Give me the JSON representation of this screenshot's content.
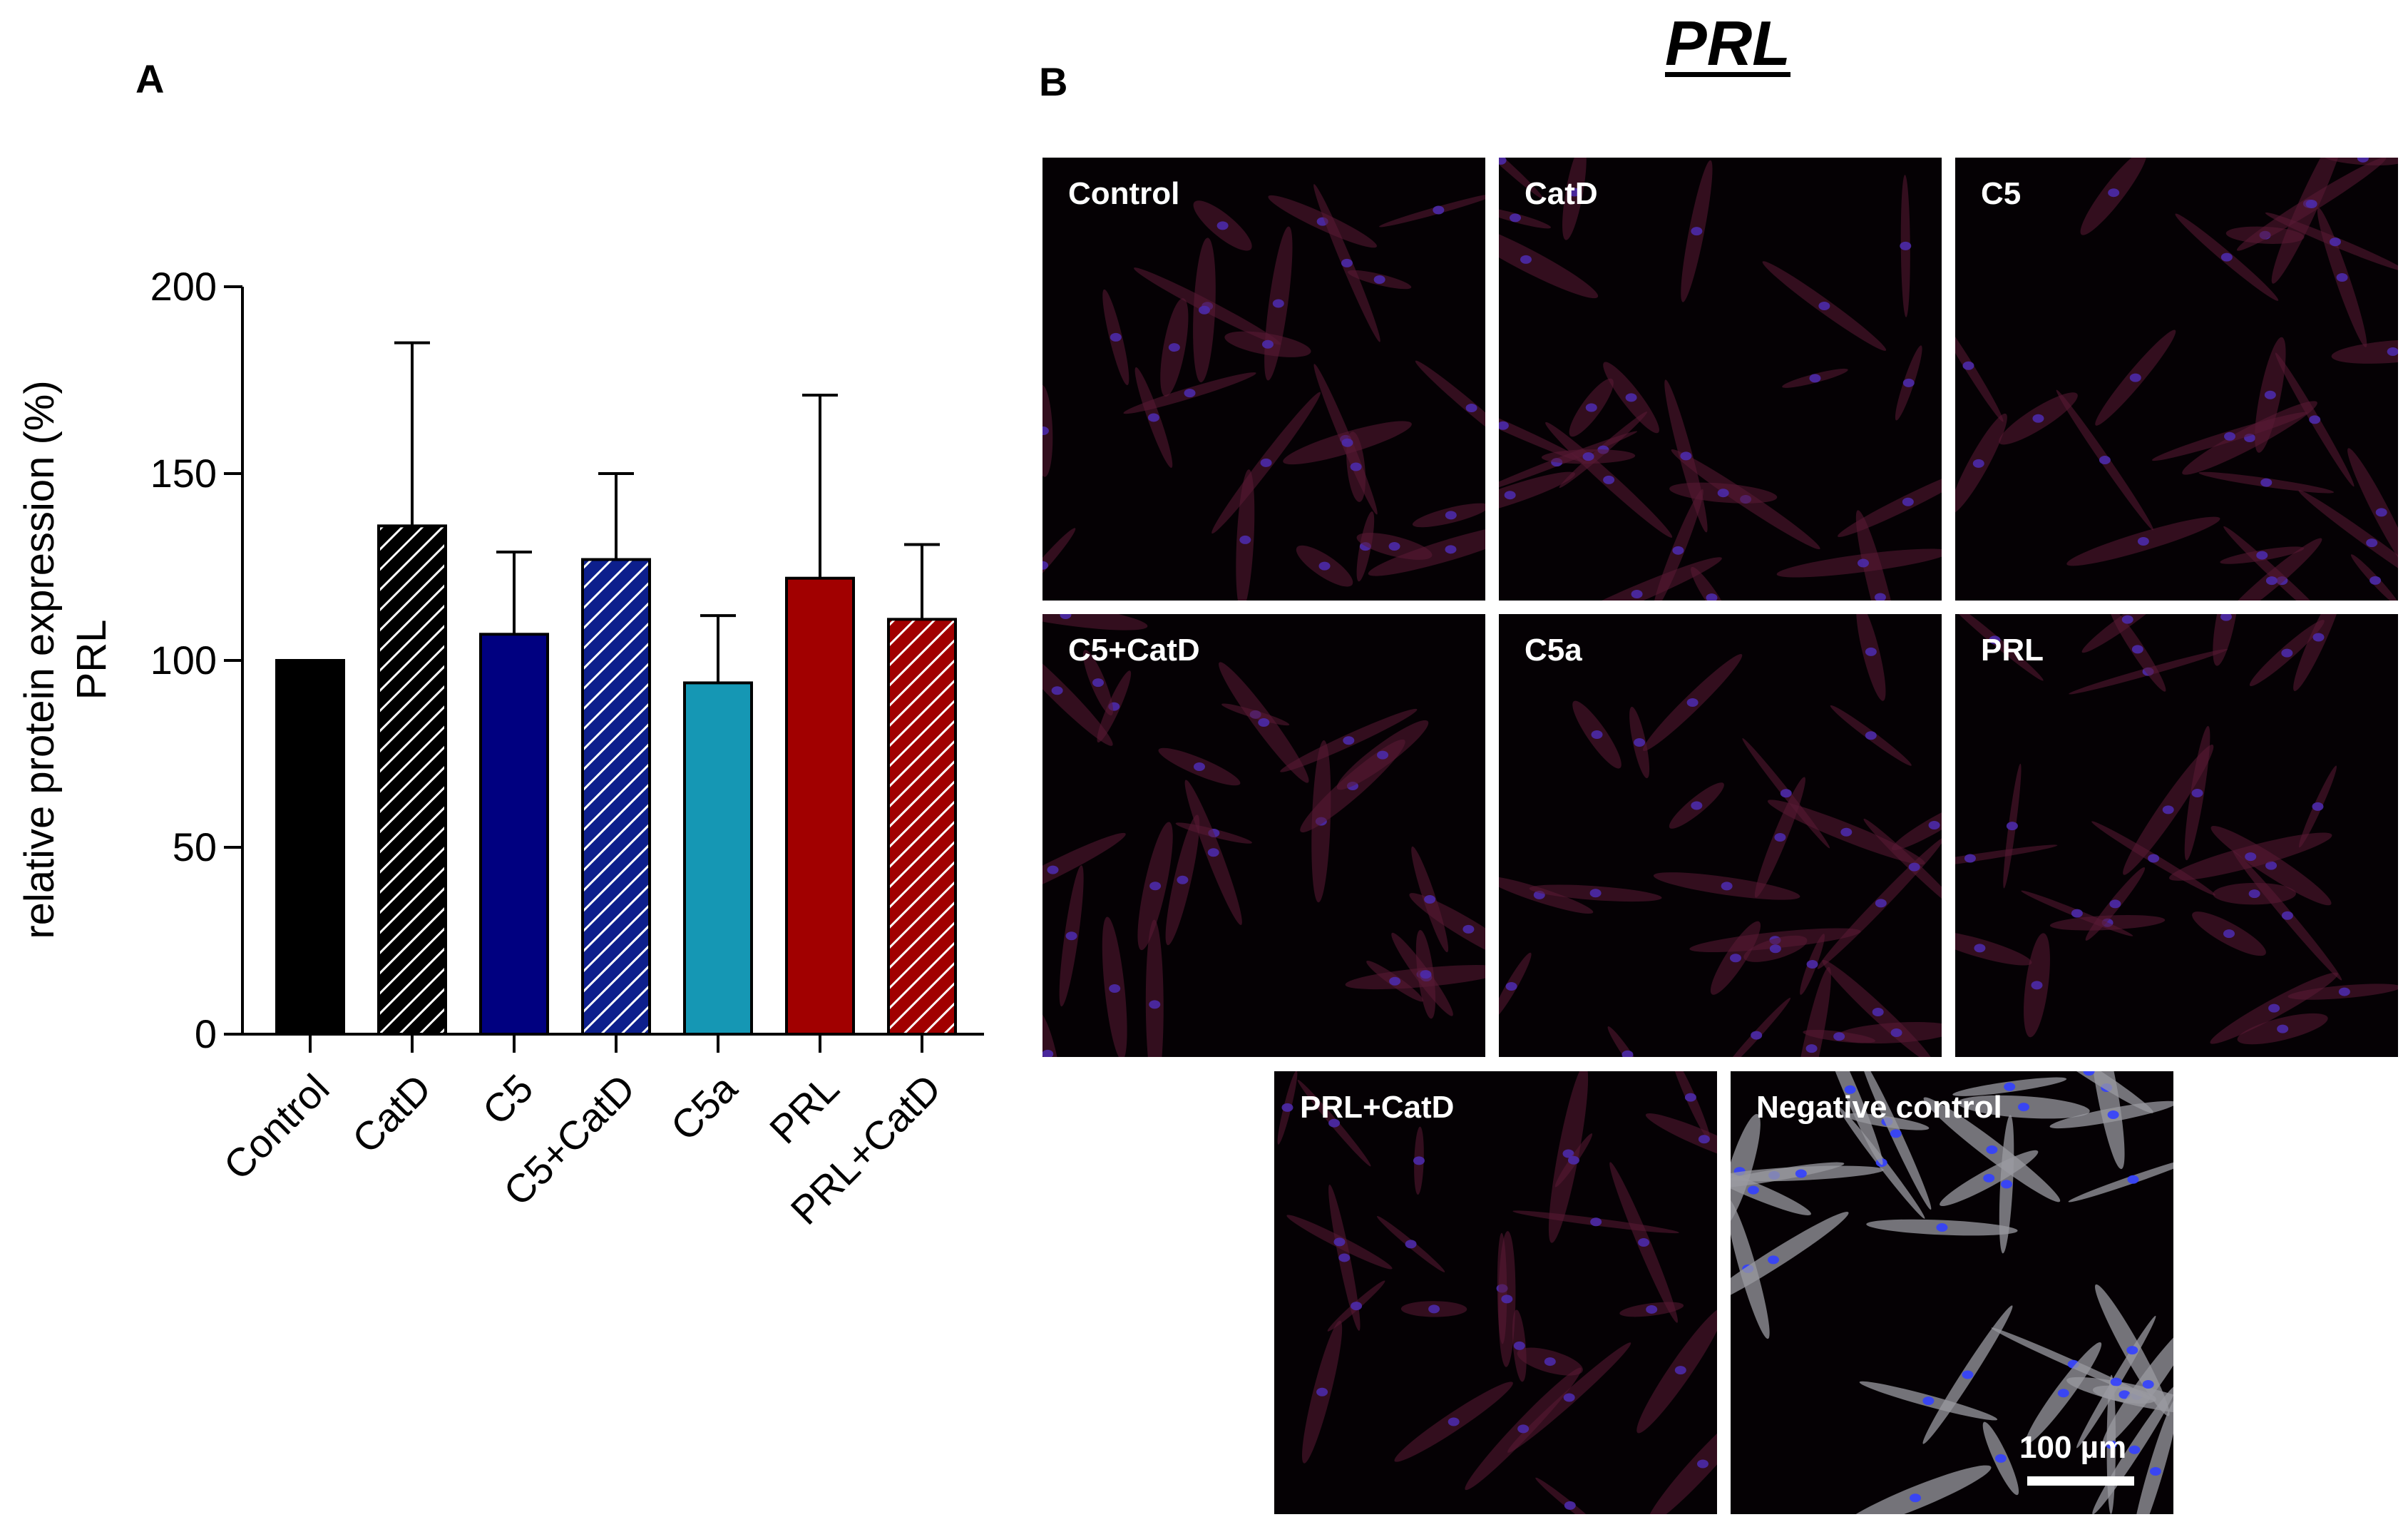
{
  "panels": {
    "a": "A",
    "b": "B"
  },
  "figure_title": "PRL",
  "chart_data": {
    "type": "bar",
    "categories": [
      "Control",
      "CatD",
      "C5",
      "C5+CatD",
      "C5a",
      "PRL",
      "PRL+CatD"
    ],
    "values": [
      100,
      136,
      107,
      127,
      94,
      122,
      111
    ],
    "error_upper": [
      100,
      185,
      129,
      150,
      112,
      171,
      131
    ],
    "bar_colors": [
      "#000000",
      "#000000",
      "#000080",
      "#0d1f8c",
      "#1597b4",
      "#a10000",
      "#a10000"
    ],
    "bar_hatched": [
      false,
      true,
      false,
      true,
      false,
      false,
      true
    ],
    "ylabel": "relative protein expression (%)",
    "ylabel2": "PRL",
    "ylim": [
      0,
      200
    ],
    "yticks": [
      "0",
      "50",
      "100",
      "150",
      "200"
    ],
    "grid": false
  },
  "images": {
    "tiles": [
      {
        "label": "Control",
        "stain": "red-blue"
      },
      {
        "label": "CatD",
        "stain": "red-blue"
      },
      {
        "label": "C5",
        "stain": "red-blue"
      },
      {
        "label": "C5+CatD",
        "stain": "red-blue"
      },
      {
        "label": "C5a",
        "stain": "red-blue"
      },
      {
        "label": "PRL",
        "stain": "red-blue"
      },
      {
        "label": "PRL+CatD",
        "stain": "red-blue"
      },
      {
        "label": "Negative control",
        "stain": "gray-blue"
      }
    ],
    "scale_bar": "100 µm"
  }
}
